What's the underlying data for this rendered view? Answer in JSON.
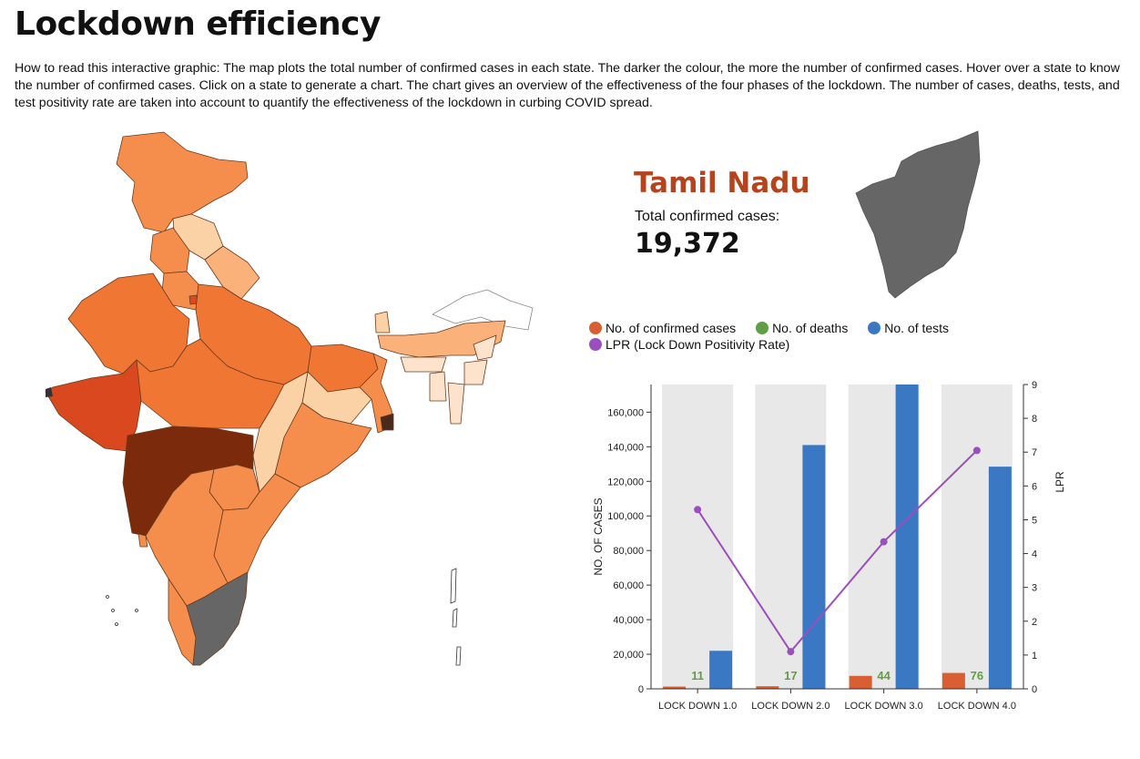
{
  "header": {
    "title": "Lockdown efficiency",
    "description": "How to read this interactive graphic: The map plots the total number of confirmed cases in each state. The darker the colour, the more the number of confirmed cases. Hover over a state to know the number of confirmed cases. Click on a state to generate a chart. The chart gives an overview of the effectiveness of the four phases of the lockdown. The number of cases, deaths, tests, and test positivity rate are taken into account to quantify the effectiveness of the lockdown in curbing COVID spread."
  },
  "selection": {
    "state_name": "Tamil Nadu",
    "total_label": "Total confirmed cases:",
    "total_value": "19,372"
  },
  "colors": {
    "confirmed": "#d95f33",
    "deaths": "#5f9e44",
    "tests": "#3b78c4",
    "lpr": "#9b4fbf",
    "selected_state": "#666666",
    "panel_bg": "#e8e8e8",
    "state_title": "#b5431e"
  },
  "legend": [
    {
      "label": "No. of confirmed cases",
      "color": "#d95f33"
    },
    {
      "label": "No. of deaths",
      "color": "#5f9e44"
    },
    {
      "label": "No. of tests",
      "color": "#3b78c4"
    },
    {
      "label": "LPR (Lock Down Positivity Rate)",
      "color": "#9b4fbf"
    }
  ],
  "chart_data": {
    "type": "bar",
    "categories": [
      "LOCK DOWN 1.0",
      "LOCK DOWN 2.0",
      "LOCK DOWN 3.0",
      "LOCK DOWN 4.0"
    ],
    "series": [
      {
        "name": "No. of confirmed cases",
        "values": [
          1300,
          1500,
          7500,
          9200
        ]
      },
      {
        "name": "No. of tests",
        "values": [
          22000,
          141000,
          176000,
          128500
        ]
      }
    ],
    "deaths": [
      11,
      17,
      44,
      76
    ],
    "lpr": {
      "name": "LPR",
      "values": [
        5.3,
        1.1,
        4.35,
        7.05
      ]
    },
    "ylabel": "NO. OF CASES",
    "y2label": "LPR",
    "ylim": [
      0,
      176000
    ],
    "y2lim": [
      0,
      9
    ],
    "yticks": [
      0,
      20000,
      40000,
      60000,
      80000,
      100000,
      120000,
      140000,
      160000
    ],
    "y2ticks": [
      0,
      1,
      2,
      3,
      4,
      5,
      6,
      7,
      8,
      9
    ]
  }
}
